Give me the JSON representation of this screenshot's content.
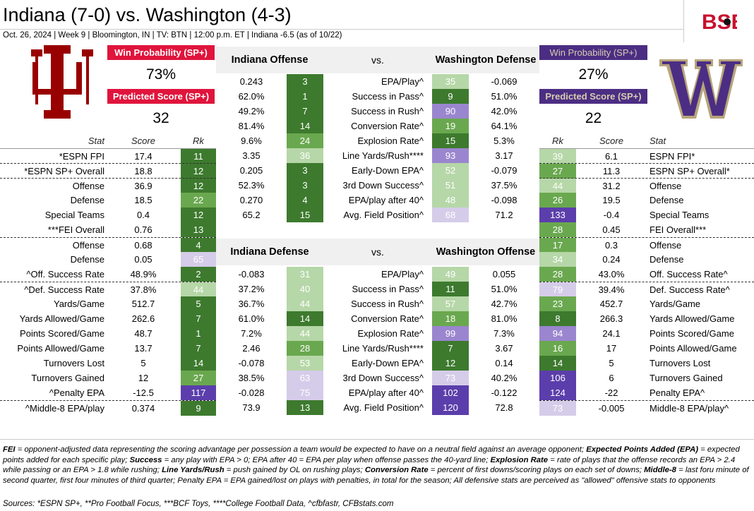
{
  "header": {
    "title": "Indiana (7-0) vs. Washington (4-3)",
    "meta": "Oct. 26, 2024 | Week 9 | Bloomington, IN | TV: BTN | 12:00 p.m. ET | Indiana -6.5 (as of 10/22)",
    "brand": "BSB"
  },
  "colors": {
    "indiana_red": "#e0143c",
    "washington_purple": "#4b2e83",
    "washington_gold": "#d6cdb0",
    "rank_dark_green": "#3d7a2e",
    "rank_mid_green": "#6aa84f",
    "rank_light_green": "#b6d7a8",
    "rank_light_purple": "#d5cce9",
    "rank_mid_purple": "#9a86cf",
    "rank_dark_purple": "#5b3eab"
  },
  "indiana": {
    "logo": "indiana-iu-logo",
    "win_prob_label": "Win Probability (SP+)",
    "win_prob": "73%",
    "pred_score_label": "Predicted Score (SP+)",
    "pred_score": "32"
  },
  "washington": {
    "logo": "washington-w-logo",
    "win_prob_label": "Win Probability (SP+)",
    "win_prob": "27%",
    "pred_score_label": "Predicted Score (SP+)",
    "pred_score": "22"
  },
  "stat_header": {
    "stat": "Stat",
    "score": "Score",
    "rk": "Rk"
  },
  "left_rows": [
    {
      "stat": "*ESPN FPI",
      "score": "17.4",
      "rk": "11"
    },
    {
      "stat": "*ESPN SP+ Overall",
      "score": "18.8",
      "rk": "12"
    },
    {
      "stat": "Offense",
      "score": "36.9",
      "rk": "12"
    },
    {
      "stat": "Defense",
      "score": "18.5",
      "rk": "22"
    },
    {
      "stat": "Special Teams",
      "score": "0.4",
      "rk": "12"
    },
    {
      "stat": "***FEI Overall",
      "score": "0.76",
      "rk": "13"
    },
    {
      "stat": "Offense",
      "score": "0.68",
      "rk": "4"
    },
    {
      "stat": "Defense",
      "score": "0.05",
      "rk": "65"
    },
    {
      "stat": "^Off. Success Rate",
      "score": "48.9%",
      "rk": "2"
    },
    {
      "stat": "^Def. Success Rate",
      "score": "37.8%",
      "rk": "44"
    },
    {
      "stat": "Yards/Game",
      "score": "512.7",
      "rk": "5"
    },
    {
      "stat": "Yards Allowed/Game",
      "score": "262.6",
      "rk": "7"
    },
    {
      "stat": "Points Scored/Game",
      "score": "48.7",
      "rk": "1"
    },
    {
      "stat": "Points Allowed/Game",
      "score": "13.7",
      "rk": "7"
    },
    {
      "stat": "Turnovers Lost",
      "score": "5",
      "rk": "14"
    },
    {
      "stat": "Turnovers Gained",
      "score": "12",
      "rk": "27"
    },
    {
      "stat": "^Penalty EPA",
      "score": "-12.5",
      "rk": "117"
    },
    {
      "stat": "^Middle-8 EPA/play",
      "score": "0.374",
      "rk": "9"
    }
  ],
  "right_rows": [
    {
      "stat": "ESPN FPI*",
      "score": "6.1",
      "rk": "39"
    },
    {
      "stat": "ESPN SP+ Overall*",
      "score": "11.3",
      "rk": "27"
    },
    {
      "stat": "Offense",
      "score": "31.2",
      "rk": "44"
    },
    {
      "stat": "Defense",
      "score": "19.5",
      "rk": "26"
    },
    {
      "stat": "Special Teams",
      "score": "-0.4",
      "rk": "133"
    },
    {
      "stat": "FEI Overall***",
      "score": "0.45",
      "rk": "28"
    },
    {
      "stat": "Offense",
      "score": "0.3",
      "rk": "17"
    },
    {
      "stat": "Defense",
      "score": "0.24",
      "rk": "34"
    },
    {
      "stat": "Off. Success Rate^",
      "score": "43.0%",
      "rk": "28"
    },
    {
      "stat": "Def. Success Rate^",
      "score": "39.4%",
      "rk": "79"
    },
    {
      "stat": "Yards/Game",
      "score": "452.7",
      "rk": "23"
    },
    {
      "stat": "Yards Allowed/Game",
      "score": "266.3",
      "rk": "8"
    },
    {
      "stat": "Points Scored/Game",
      "score": "24.1",
      "rk": "94"
    },
    {
      "stat": "Points Allowed/Game",
      "score": "17",
      "rk": "16"
    },
    {
      "stat": "Turnovers Lost",
      "score": "5",
      "rk": "14"
    },
    {
      "stat": "Turnovers Gained",
      "score": "6",
      "rk": "106"
    },
    {
      "stat": "Penalty EPA^",
      "score": "-22",
      "rk": "124"
    },
    {
      "stat": "Middle-8 EPA/play^",
      "score": "-0.005",
      "rk": "73"
    }
  ],
  "matchup_top": {
    "left_title": "Indiana Offense",
    "vs": "vs.",
    "right_title": "Washington Defense",
    "rows": [
      {
        "lval": "0.243",
        "lrk": "3",
        "stat": "EPA/Play^",
        "rrk": "35",
        "rval": "-0.069"
      },
      {
        "lval": "62.0%",
        "lrk": "1",
        "stat": "Success in Pass^",
        "rrk": "9",
        "rval": "51.0%"
      },
      {
        "lval": "49.2%",
        "lrk": "7",
        "stat": "Success in Rush^",
        "rrk": "90",
        "rval": "42.0%"
      },
      {
        "lval": "81.4%",
        "lrk": "14",
        "stat": "Conversion Rate^",
        "rrk": "19",
        "rval": "64.1%"
      },
      {
        "lval": "9.6%",
        "lrk": "24",
        "stat": "Explosion Rate^",
        "rrk": "15",
        "rval": "5.3%"
      },
      {
        "lval": "3.35",
        "lrk": "36",
        "stat": "Line Yards/Rush****",
        "rrk": "93",
        "rval": "3.17"
      },
      {
        "lval": "0.205",
        "lrk": "3",
        "stat": "Early-Down EPA^",
        "rrk": "52",
        "rval": "-0.079"
      },
      {
        "lval": "52.3%",
        "lrk": "3",
        "stat": "3rd Down Success^",
        "rrk": "51",
        "rval": "37.5%"
      },
      {
        "lval": "0.270",
        "lrk": "4",
        "stat": "EPA/play after 40^",
        "rrk": "48",
        "rval": "-0.098"
      },
      {
        "lval": "65.2",
        "lrk": "15",
        "stat": "Avg. Field Position^",
        "rrk": "68",
        "rval": "71.2"
      }
    ]
  },
  "matchup_bottom": {
    "left_title": "Indiana Defense",
    "vs": "vs.",
    "right_title": "Washington Offense",
    "rows": [
      {
        "lval": "-0.083",
        "lrk": "31",
        "stat": "EPA/Play^",
        "rrk": "49",
        "rval": "0.055"
      },
      {
        "lval": "37.2%",
        "lrk": "40",
        "stat": "Success in Pass^",
        "rrk": "11",
        "rval": "51.0%"
      },
      {
        "lval": "36.7%",
        "lrk": "44",
        "stat": "Success in Rush^",
        "rrk": "57",
        "rval": "42.7%"
      },
      {
        "lval": "61.0%",
        "lrk": "14",
        "stat": "Conversion Rate^",
        "rrk": "18",
        "rval": "81.0%"
      },
      {
        "lval": "7.2%",
        "lrk": "44",
        "stat": "Explosion Rate^",
        "rrk": "99",
        "rval": "7.3%"
      },
      {
        "lval": "2.46",
        "lrk": "28",
        "stat": "Line Yards/Rush****",
        "rrk": "7",
        "rval": "3.67"
      },
      {
        "lval": "-0.078",
        "lrk": "53",
        "stat": "Early-Down EPA^",
        "rrk": "12",
        "rval": "0.14"
      },
      {
        "lval": "38.5%",
        "lrk": "63",
        "stat": "3rd Down Success^",
        "rrk": "73",
        "rval": "40.2%"
      },
      {
        "lval": "-0.028",
        "lrk": "75",
        "stat": "EPA/play after 40^",
        "rrk": "102",
        "rval": "-0.122"
      },
      {
        "lval": "73.9",
        "lrk": "13",
        "stat": "Avg. Field Position^",
        "rrk": "120",
        "rval": "72.8"
      }
    ]
  },
  "notes": [
    {
      "b": "FEI",
      "t": " = opponent-adjusted data representing the scoring advantage per possession a team would be expected to have on a neutral field against an average opponent; "
    },
    {
      "b": "Expected Points Added (EPA)",
      "t": " = expected points added for each specific play; "
    },
    {
      "b": "Success",
      "t": " = any play with EPA > 0; EPA after 40 = EPA per play when offense passes the 40-yard line; "
    },
    {
      "b": "Explosion Rate",
      "t": " = rate of plays that the offense records an EPA > 2.4 while passing or an EPA > 1.8 while rushing; "
    },
    {
      "b": "Line Yards/Rush",
      "t": " = push gained by OL on rushing plays; "
    },
    {
      "b": "Conversion Rate",
      "t": " = percent of first downs/scoring plays on each set of downs; "
    },
    {
      "b": "Middle-8",
      "t": " = last foru minute of second quarter, first four minutes of third quarter; Penalty EPA = EPA gained/lost on plays with penalties, in total for the season; All defensive stats are perceived as \"allowed\" offensive stats to opponents"
    }
  ],
  "sources": "Sources: *ESPN SP+, **Pro Football Focus, ***BCF Toys, ****College Football Data, ^cfbfastr, CFBstats.com"
}
